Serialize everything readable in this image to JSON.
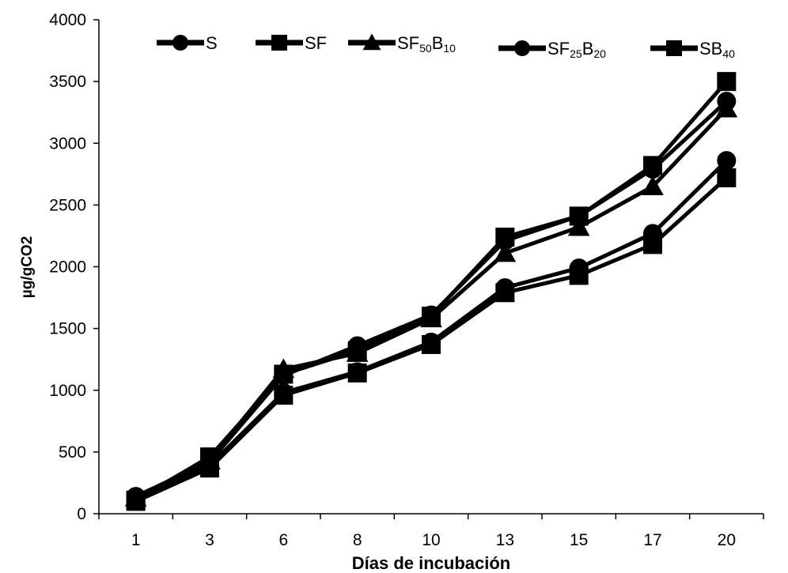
{
  "chart_data": {
    "type": "line",
    "title": "",
    "xlabel": "Días de incubación",
    "ylabel": "µg/gCO2",
    "categories": [
      "1",
      "3",
      "6",
      "8",
      "10",
      "13",
      "15",
      "17",
      "20"
    ],
    "ylim": [
      0,
      4000
    ],
    "yticks": [
      0,
      500,
      1000,
      1500,
      2000,
      2500,
      3000,
      3500,
      4000
    ],
    "grid": false,
    "legend_position": "top",
    "line_color": "#000000",
    "series": [
      {
        "name": "S",
        "legend_parts": [
          {
            "t": "S",
            "sub": false
          }
        ],
        "marker": "circle",
        "values": [
          140,
          420,
          1120,
          1360,
          1610,
          2210,
          2410,
          2790,
          3340
        ]
      },
      {
        "name": "SF",
        "legend_parts": [
          {
            "t": "SF",
            "sub": false
          }
        ],
        "marker": "square",
        "values": [
          110,
          460,
          1130,
          1320,
          1600,
          2240,
          2410,
          2820,
          3500
        ]
      },
      {
        "name": "SF50B10",
        "legend_parts": [
          {
            "t": "SF",
            "sub": false
          },
          {
            "t": "50",
            "sub": true
          },
          {
            "t": "B",
            "sub": false
          },
          {
            "t": "10",
            "sub": true
          }
        ],
        "marker": "triangle",
        "values": [
          130,
          430,
          1170,
          1300,
          1580,
          2110,
          2320,
          2650,
          3280
        ]
      },
      {
        "name": "SF25B20",
        "legend_parts": [
          {
            "t": "SF",
            "sub": false
          },
          {
            "t": "25",
            "sub": true
          },
          {
            "t": "B",
            "sub": false
          },
          {
            "t": "20",
            "sub": true
          }
        ],
        "marker": "circle",
        "values": [
          120,
          390,
          980,
          1150,
          1390,
          1830,
          1990,
          2270,
          2860
        ]
      },
      {
        "name": "SB40",
        "legend_parts": [
          {
            "t": "SB",
            "sub": false
          },
          {
            "t": "40",
            "sub": true
          }
        ],
        "marker": "square",
        "values": [
          100,
          370,
          960,
          1140,
          1370,
          1790,
          1930,
          2180,
          2720
        ]
      }
    ]
  }
}
